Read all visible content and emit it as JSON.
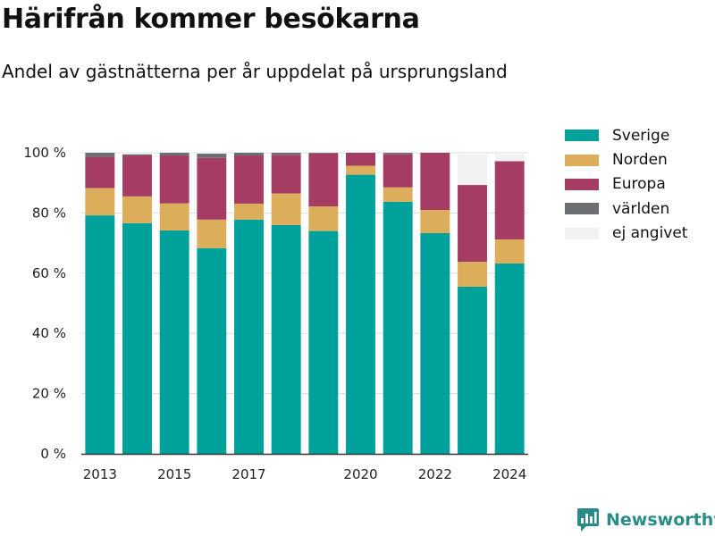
{
  "chart_data": {
    "type": "bar",
    "stacked": true,
    "title": "Härifrån kommer besökarna",
    "subtitle": "Andel av gästnätterna per år uppdelat på ursprungsland",
    "x": [
      2013,
      2014,
      2015,
      2016,
      2017,
      2018,
      2019,
      2020,
      2021,
      2022,
      2023,
      2024
    ],
    "x_tick_labels": [
      "2013",
      "2015",
      "2017",
      "2020",
      "2022",
      "2024"
    ],
    "x_tick_values": [
      2013,
      2015,
      2017,
      2020,
      2022,
      2024
    ],
    "y_tick_labels": [
      "0 %",
      "20 %",
      "40 %",
      "60 %",
      "80 %",
      "100 %"
    ],
    "y_tick_values": [
      0,
      20,
      40,
      60,
      80,
      100
    ],
    "ylim": [
      0,
      100
    ],
    "grid": true,
    "legend_position": "right",
    "series": [
      {
        "name": "Sverige",
        "color": "#00a19a",
        "values": [
          79.2,
          76.6,
          74.2,
          68.3,
          77.8,
          76.0,
          74.0,
          92.7,
          83.7,
          73.3,
          55.5,
          63.2
        ]
      },
      {
        "name": "Norden",
        "color": "#dcad5b",
        "values": [
          9.1,
          8.9,
          9.0,
          9.5,
          5.3,
          10.5,
          8.2,
          3.0,
          4.8,
          7.7,
          8.3,
          8.0
        ]
      },
      {
        "name": "Europa",
        "color": "#a53c64",
        "values": [
          10.4,
          13.6,
          15.9,
          20.5,
          16.0,
          12.8,
          17.6,
          4.3,
          11.0,
          19.0,
          25.5,
          26.0
        ]
      },
      {
        "name": "världen",
        "color": "#6b6e73",
        "values": [
          1.3,
          0.4,
          0.9,
          1.4,
          0.9,
          0.7,
          0.2,
          0.0,
          0.5,
          0.0,
          0.0,
          0.0
        ]
      },
      {
        "name": "ej angivet",
        "color": "#f2f2f2",
        "values": [
          0.0,
          0.5,
          0.0,
          0.3,
          0.0,
          0.0,
          0.0,
          0.0,
          0.0,
          0.0,
          10.7,
          2.8
        ]
      }
    ]
  },
  "brand": {
    "name": "Newsworthy",
    "icon": "bar-chart-speech-bubble-icon",
    "color": "#2a8c86"
  }
}
